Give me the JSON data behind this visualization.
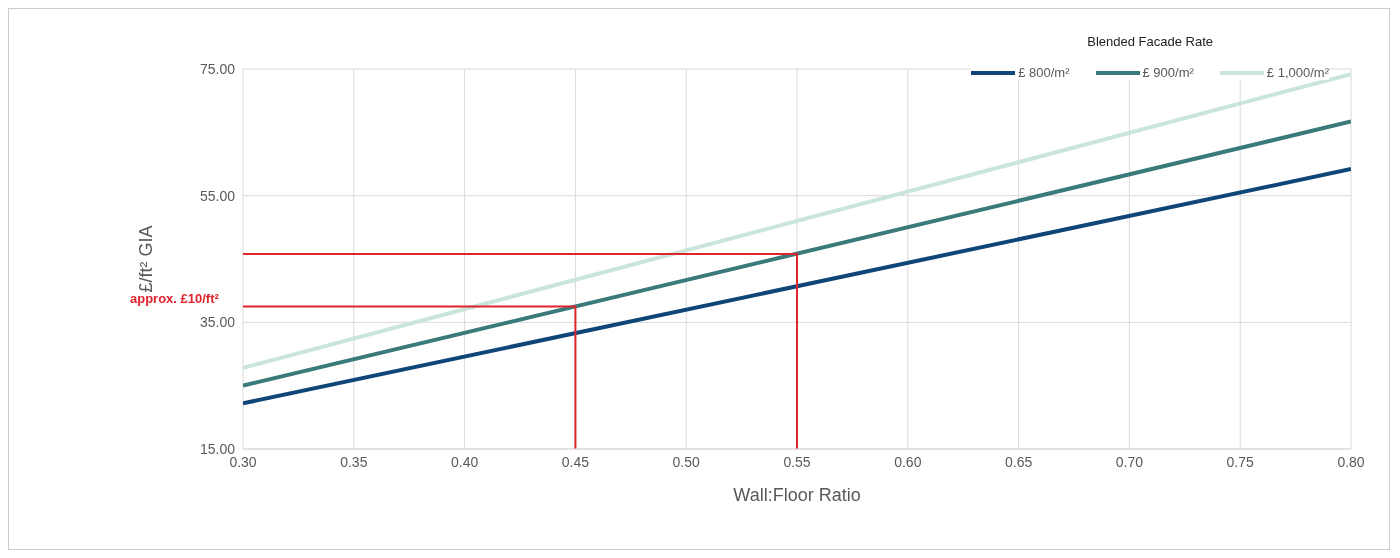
{
  "chart_data": {
    "type": "line",
    "xlabel": "Wall:Floor Ratio",
    "ylabel": "£/ft² GIA",
    "legend_title": "Blended Facade Rate",
    "xlim": [
      0.3,
      0.8
    ],
    "xticks": [
      {
        "value": 0.3,
        "label": "0.30"
      },
      {
        "value": 0.35,
        "label": "0.35"
      },
      {
        "value": 0.4,
        "label": "0.40"
      },
      {
        "value": 0.45,
        "label": "0.45"
      },
      {
        "value": 0.5,
        "label": "0.50"
      },
      {
        "value": 0.55,
        "label": "0.55"
      },
      {
        "value": 0.6,
        "label": "0.60"
      },
      {
        "value": 0.65,
        "label": "0.65"
      },
      {
        "value": 0.7,
        "label": "0.70"
      },
      {
        "value": 0.75,
        "label": "0.75"
      },
      {
        "value": 0.8,
        "label": "0.80"
      }
    ],
    "ylim": [
      15,
      75
    ],
    "yticks": [
      {
        "value": 15,
        "label": "15.00"
      },
      {
        "value": 35,
        "label": "35.00"
      },
      {
        "value": 55,
        "label": "55.00"
      },
      {
        "value": 75,
        "label": "75.00"
      }
    ],
    "grid": true,
    "legend": "top right",
    "marker": "none",
    "series": [
      {
        "name": "£ 800/m²",
        "color": "#0f4677",
        "x": [
          0.3,
          0.8
        ],
        "values": [
          22.2,
          59.2
        ]
      },
      {
        "name": "£ 900/m²",
        "color": "#3a7a7a",
        "x": [
          0.3,
          0.8
        ],
        "values": [
          25,
          66.7
        ]
      },
      {
        "name": "£ 1,000/m²",
        "color": "#c9e6d8",
        "x": [
          0.3,
          0.8
        ],
        "values": [
          27.8,
          74.2
        ]
      },
      {
        "color": "#e0242b",
        "x": [
          0.3,
          0.45,
          0.45
        ],
        "values": [
          37.5,
          37.5,
          15
        ]
      },
      {
        "color": "#e0242b",
        "x": [
          0.3,
          0.55,
          0.55
        ],
        "values": [
          45.8,
          45.8,
          15
        ]
      }
    ],
    "annotations": [
      "approx. £10/ft²"
    ]
  }
}
